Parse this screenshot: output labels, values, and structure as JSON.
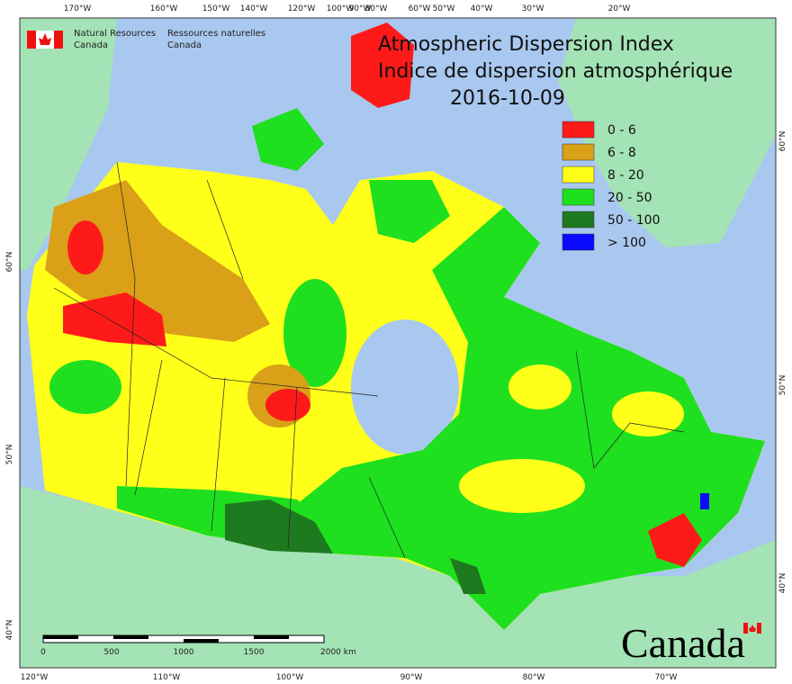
{
  "agency": {
    "en_line1": "Natural Resources",
    "en_line2": "Canada",
    "fr_line1": "Ressources naturelles",
    "fr_line2": "Canada"
  },
  "title": {
    "en": "Atmospheric Dispersion Index",
    "fr": "Indice de dispersion atmosphérique",
    "date": "2016-10-09"
  },
  "legend": [
    {
      "label": "0 - 6",
      "color": "#ff1a1a"
    },
    {
      "label": "6 - 8",
      "color": "#d9a018"
    },
    {
      "label": "8 - 20",
      "color": "#ffff1a"
    },
    {
      "label": "20 - 50",
      "color": "#1ee01e"
    },
    {
      "label": "50 - 100",
      "color": "#1e7a1e"
    },
    {
      "label": "> 100",
      "color": "#0a0aff"
    }
  ],
  "axes": {
    "top": [
      "170°W",
      "160°W",
      "150°W",
      "140°W",
      "120°W",
      "100°W",
      "90°W",
      "80°W",
      "60°W",
      "50°W",
      "40°W",
      "30°W",
      "20°W"
    ],
    "bottom": [
      "120°W",
      "110°W",
      "100°W",
      "90°W",
      "80°W",
      "70°W"
    ],
    "left": [
      "60°N",
      "50°N",
      "40°N"
    ],
    "right": [
      "60°N",
      "50°N",
      "40°N"
    ]
  },
  "scale_bar": {
    "labels": [
      "0",
      "500",
      "1000",
      "1500",
      "2000 km"
    ]
  },
  "wordmark": "Canada"
}
